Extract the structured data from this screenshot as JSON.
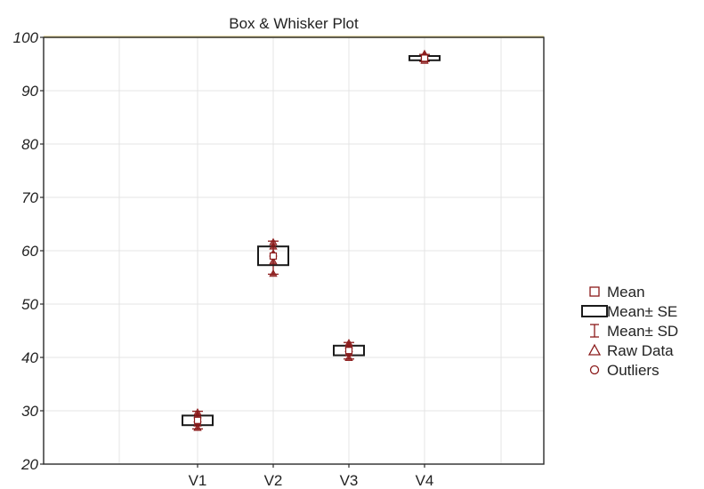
{
  "chart_data": {
    "type": "box",
    "title": "Box & Whisker Plot",
    "xlabel": "",
    "ylabel": "",
    "categories": [
      "V1",
      "V2",
      "V3",
      "V4"
    ],
    "ylim": [
      20,
      100
    ],
    "yticks": [
      "20",
      "30",
      "40",
      "50",
      "60",
      "70",
      "80",
      "90",
      "100"
    ],
    "grid": true,
    "legend_position": "right",
    "series": [
      {
        "category": "V1",
        "mean": 28.2,
        "se_low": 27.3,
        "se_high": 29.1,
        "sd_low": 26.6,
        "sd_high": 29.9,
        "raw": [
          26.8,
          27.6,
          28.4,
          29.2,
          29.7
        ]
      },
      {
        "category": "V2",
        "mean": 59.0,
        "se_low": 57.3,
        "se_high": 60.8,
        "sd_low": 55.6,
        "sd_high": 61.8,
        "raw": [
          55.7,
          58.0,
          59.5,
          60.8,
          61.6
        ]
      },
      {
        "category": "V3",
        "mean": 41.3,
        "se_low": 40.4,
        "se_high": 42.2,
        "sd_low": 39.7,
        "sd_high": 42.8,
        "raw": [
          39.9,
          40.8,
          41.6,
          42.3,
          42.7
        ]
      },
      {
        "category": "V4",
        "mean": 96.1,
        "se_low": 95.7,
        "se_high": 96.5,
        "sd_low": 95.5,
        "sd_high": 96.8,
        "raw": [
          95.6,
          95.9,
          96.2,
          96.6,
          96.9
        ]
      }
    ],
    "legend": [
      {
        "symbol": "mean",
        "label": "Mean"
      },
      {
        "symbol": "box",
        "label": "Mean± SE"
      },
      {
        "symbol": "whisker",
        "label": "Mean± SD"
      },
      {
        "symbol": "raw",
        "label": "Raw Data"
      },
      {
        "symbol": "outlier",
        "label": "Outliers"
      }
    ],
    "colors": {
      "box": "#1a1a1a",
      "marker": "#8b1a1a",
      "grid": "#e4e4e4",
      "frame_top": "#e8ddb0"
    }
  }
}
